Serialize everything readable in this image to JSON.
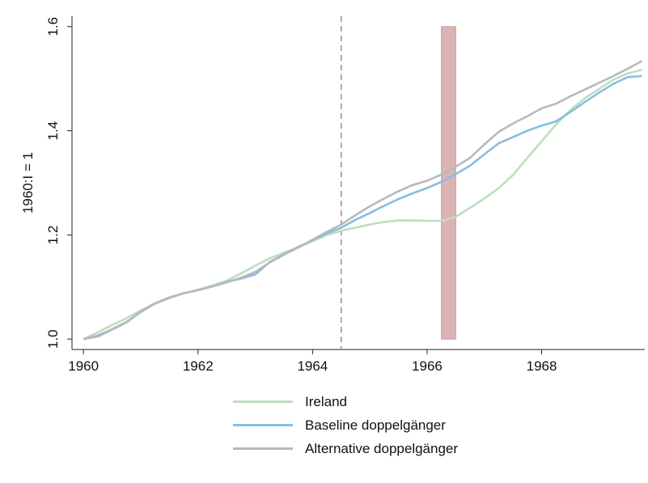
{
  "chart_data": {
    "type": "line",
    "title": "",
    "xlabel": "",
    "ylabel": "1960:I = 1",
    "xlim": [
      1959.8,
      1969.8
    ],
    "ylim": [
      0.98,
      1.62
    ],
    "x_ticks": [
      1960,
      1962,
      1964,
      1966,
      1968
    ],
    "x_tick_labels": [
      "1960",
      "1962",
      "1964",
      "1966",
      "1968"
    ],
    "y_ticks": [
      1.0,
      1.2,
      1.4,
      1.6
    ],
    "y_tick_labels": [
      "1.0",
      "1.2",
      "1.4",
      "1.6"
    ],
    "grid": false,
    "legend_position": "bottom",
    "annotations": {
      "vertical_line": {
        "x": 1964.5,
        "style": "dashed",
        "color": "#b5847a"
      },
      "shaded_band": {
        "x_start": 1966.25,
        "x_end": 1966.5,
        "y_start": 1.0,
        "y_end": 1.6,
        "color": "#dcb4b4",
        "border": "#c99a9a"
      }
    },
    "x": [
      1960.0,
      1960.25,
      1960.5,
      1960.75,
      1961.0,
      1961.25,
      1961.5,
      1961.75,
      1962.0,
      1962.25,
      1962.5,
      1962.75,
      1963.0,
      1963.25,
      1963.5,
      1963.75,
      1964.0,
      1964.25,
      1964.5,
      1964.75,
      1965.0,
      1965.25,
      1965.5,
      1965.75,
      1966.0,
      1966.25,
      1966.5,
      1966.75,
      1967.0,
      1967.25,
      1967.5,
      1967.75,
      1968.0,
      1968.25,
      1968.5,
      1968.75,
      1969.0,
      1969.25,
      1969.5,
      1969.75
    ],
    "series": [
      {
        "name": "Ireland",
        "color": "#bcdfbc",
        "values": [
          1.0,
          1.013,
          1.027,
          1.04,
          1.055,
          1.069,
          1.08,
          1.088,
          1.095,
          1.103,
          1.112,
          1.126,
          1.141,
          1.155,
          1.166,
          1.176,
          1.188,
          1.2,
          1.208,
          1.214,
          1.22,
          1.225,
          1.228,
          1.228,
          1.227,
          1.227,
          1.235,
          1.252,
          1.27,
          1.29,
          1.315,
          1.348,
          1.38,
          1.412,
          1.44,
          1.462,
          1.48,
          1.498,
          1.51,
          1.517
        ]
      },
      {
        "name": "Baseline doppelgänger",
        "color": "#87bee3",
        "values": [
          1.0,
          1.005,
          1.018,
          1.032,
          1.052,
          1.068,
          1.08,
          1.088,
          1.094,
          1.101,
          1.11,
          1.116,
          1.124,
          1.148,
          1.163,
          1.177,
          1.19,
          1.203,
          1.214,
          1.229,
          1.242,
          1.256,
          1.269,
          1.28,
          1.29,
          1.302,
          1.317,
          1.333,
          1.355,
          1.376,
          1.388,
          1.4,
          1.41,
          1.418,
          1.436,
          1.455,
          1.473,
          1.49,
          1.503,
          1.505
        ]
      },
      {
        "name": "Alternative doppelgänger",
        "color": "#b9b9b9",
        "values": [
          1.0,
          1.007,
          1.019,
          1.033,
          1.053,
          1.068,
          1.079,
          1.088,
          1.094,
          1.101,
          1.109,
          1.118,
          1.129,
          1.147,
          1.162,
          1.176,
          1.191,
          1.206,
          1.22,
          1.238,
          1.255,
          1.27,
          1.284,
          1.296,
          1.304,
          1.316,
          1.331,
          1.348,
          1.374,
          1.398,
          1.414,
          1.428,
          1.443,
          1.452,
          1.466,
          1.479,
          1.492,
          1.505,
          1.519,
          1.534
        ]
      }
    ]
  }
}
